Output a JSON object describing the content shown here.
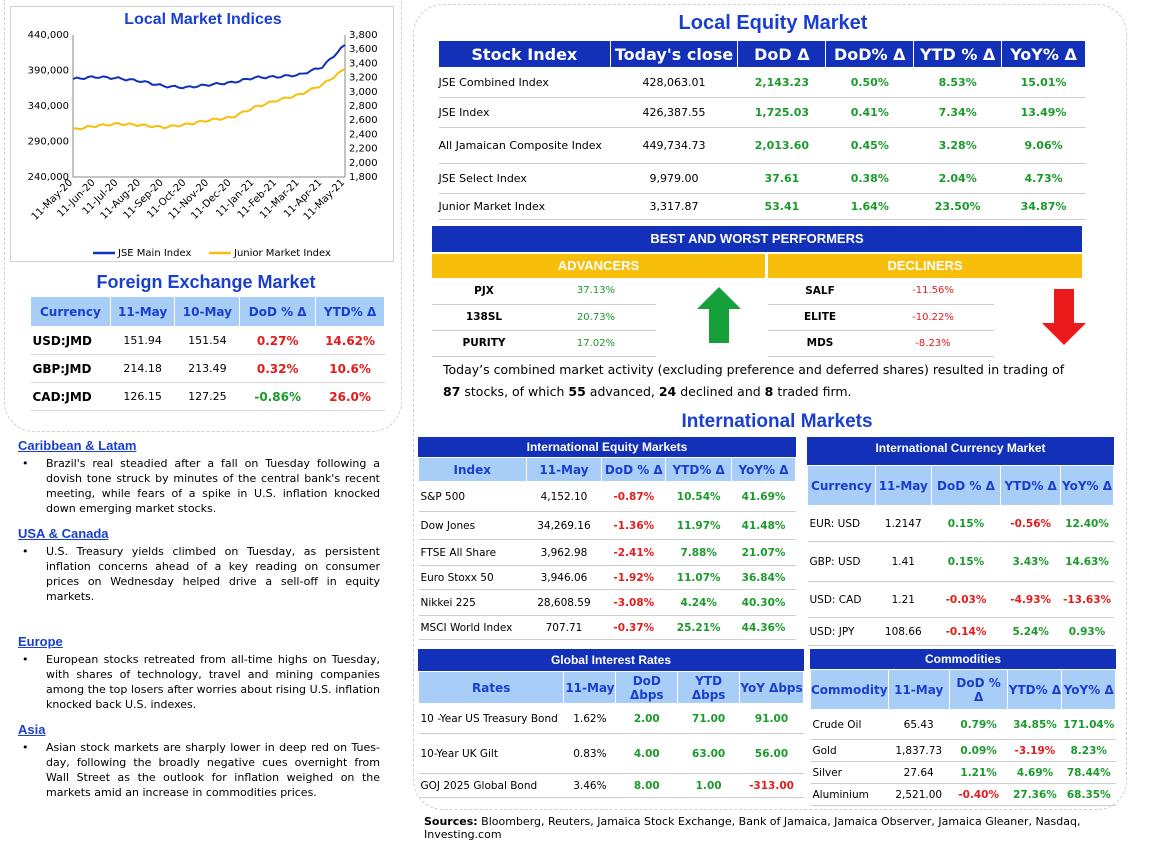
{
  "chart": {
    "title": "Local Market Indices",
    "left_ticks": [
      "440,000",
      "390,000",
      "340,000",
      "290,000",
      "240,000"
    ],
    "right_ticks": [
      "3,800",
      "3,600",
      "3,400",
      "3,200",
      "3,000",
      "2,800",
      "2,600",
      "2,400",
      "2,200",
      "2,000",
      "1,800"
    ],
    "x_ticks": [
      "11-May-20",
      "11-Jun-20",
      "11-Jul-20",
      "11-Aug-20",
      "11-Sep-20",
      "11-Oct-20",
      "11-Nov-20",
      "11-Dec-20",
      "11-Jan-21",
      "11-Feb-21",
      "11-Mar-21",
      "11-Apr-21",
      "11-May-21"
    ],
    "legend": [
      "JSE Main Index",
      "Junior Market Index"
    ]
  },
  "chart_data": {
    "type": "line",
    "title": "Local Market Indices",
    "x": [
      "11-May-20",
      "11-Jun-20",
      "11-Jul-20",
      "11-Aug-20",
      "11-Sep-20",
      "11-Oct-20",
      "11-Nov-20",
      "11-Dec-20",
      "11-Jan-21",
      "11-Feb-21",
      "11-Mar-21",
      "11-Apr-21",
      "11-May-21"
    ],
    "series": [
      {
        "name": "JSE Main Index",
        "axis": "left",
        "color": "#1230b8",
        "values": [
          378000,
          381000,
          379000,
          375000,
          368000,
          366000,
          370000,
          373000,
          380000,
          381000,
          384000,
          395000,
          426000
        ]
      },
      {
        "name": "Junior Market Index",
        "axis": "right",
        "color": "#f8bf0a",
        "values": [
          2470,
          2520,
          2550,
          2530,
          2500,
          2540,
          2600,
          2640,
          2780,
          2880,
          2960,
          3100,
          3320
        ]
      }
    ],
    "ylim_left": [
      240000,
      440000
    ],
    "ylim_right": [
      1800,
      3800
    ],
    "grid": false,
    "legend_position": "bottom"
  },
  "fx": {
    "title": "Foreign Exchange Market",
    "headers": [
      "Currency",
      "11-May",
      "10-May",
      "DoD % Δ",
      "YTD% Δ"
    ],
    "rows": [
      {
        "cur": "USD:JMD",
        "a": "151.94",
        "b": "151.54",
        "dod": "0.27%",
        "ytd": "14.62%",
        "dod_s": "neg",
        "ytd_s": "neg"
      },
      {
        "cur": "GBP:JMD",
        "a": "214.18",
        "b": "213.49",
        "dod": "0.32%",
        "ytd": "10.6%",
        "dod_s": "neg",
        "ytd_s": "neg"
      },
      {
        "cur": "CAD:JMD",
        "a": "126.15",
        "b": "127.25",
        "dod": "-0.86%",
        "ytd": "26.0%",
        "dod_s": "pos",
        "ytd_s": "neg"
      }
    ]
  },
  "news": [
    {
      "heading": "Caribbean & Latam",
      "text": "Brazil's real steadied after a fall on Tuesday following a dovish tone struck by minutes of the central bank's recent meeting, while fears of a spike in U.S. inflation knocked down emerging market stocks."
    },
    {
      "heading": "USA & Canada",
      "text": "U.S. Treasury yields climbed on Tuesday, as persistent inflation concerns ahead of a key reading on consumer prices on Wednesday helped drive a sell-off in equity markets."
    },
    {
      "heading": "Europe",
      "text": "European stocks retreated from all-time highs on Tuesday, with shares of technology, travel and mining companies among the top losers after worries about rising U.S. inflation knocked back U.S. indexes."
    },
    {
      "heading": "Asia",
      "text": "Asian stock markets are sharply lower in deep red on Tues-day, following the broadly negative cues overnight from Wall Street as the outlook for inflation weighed on the markets amid an increase in commodities prices."
    }
  ],
  "equity": {
    "title": "Local Equity Market",
    "headers": [
      "Stock Index",
      "Today's close",
      "DoD  Δ",
      "DoD% Δ",
      "YTD % Δ",
      "YoY% Δ"
    ],
    "rows": [
      {
        "name": "JSE Combined Index",
        "close": "428,063.01",
        "dod": "2,143.23",
        "dodp": "0.50%",
        "ytd": "8.53%",
        "yoy": "15.01%"
      },
      {
        "name": "JSE Index",
        "close": "426,387.55",
        "dod": "1,725.03",
        "dodp": "0.41%",
        "ytd": "7.34%",
        "yoy": "13.49%"
      },
      {
        "name": "All Jamaican Composite Index",
        "close": "449,734.73",
        "dod": "2,013.60",
        "dodp": "0.45%",
        "ytd": "3.28%",
        "yoy": "9.06%"
      },
      {
        "name": "JSE Select Index",
        "close": "9,979.00",
        "dod": "37.61",
        "dodp": "0.38%",
        "ytd": "2.04%",
        "yoy": "4.73%"
      },
      {
        "name": "Junior Market Index",
        "close": "3,317.87",
        "dod": "53.41",
        "dodp": "1.64%",
        "ytd": "23.50%",
        "yoy": "34.87%"
      }
    ]
  },
  "performers": {
    "title": "BEST AND WORST PERFORMERS",
    "adv_label": "ADVANCERS",
    "dec_label": "DECLINERS",
    "advancers": [
      [
        "PJX",
        "37.13%"
      ],
      [
        "138SL",
        "20.73%"
      ],
      [
        "PURITY",
        "17.02%"
      ]
    ],
    "decliners": [
      [
        "SALF",
        "-11.56%"
      ],
      [
        "ELITE",
        "-10.22%"
      ],
      [
        "MDS",
        "-8.23%"
      ]
    ]
  },
  "summary": {
    "t1": "Today’s combined market activity (excluding preference and deferred shares) resulted in trading of ",
    "n1": "87",
    "t2": " stocks, of which ",
    "n2": "55",
    "t3": " advanced, ",
    "n3": "24",
    "t4": " declined and ",
    "n4": "8",
    "t5": " traded firm."
  },
  "intl_title": "International Markets",
  "intl_equity": {
    "title": "International Equity Markets",
    "headers": [
      "Index",
      "11-May",
      "DoD % Δ",
      "YTD% Δ",
      "YoY% Δ"
    ],
    "rows": [
      {
        "n": "S&P 500",
        "v": "4,152.10",
        "dod": "-0.87%",
        "ytd": "10.54%",
        "yoy": "41.69%"
      },
      {
        "n": "Dow Jones",
        "v": "34,269.16",
        "dod": "-1.36%",
        "ytd": "11.97%",
        "yoy": "41.48%"
      },
      {
        "n": "FTSE All Share",
        "v": "3,962.98",
        "dod": "-2.41%",
        "ytd": "7.88%",
        "yoy": "21.07%"
      },
      {
        "n": "Euro Stoxx 50",
        "v": "3,946.06",
        "dod": "-1.92%",
        "ytd": "11.07%",
        "yoy": "36.84%"
      },
      {
        "n": "Nikkei 225",
        "v": "28,608.59",
        "dod": "-3.08%",
        "ytd": "4.24%",
        "yoy": "40.30%"
      },
      {
        "n": "MSCI World Index",
        "v": "707.71",
        "dod": "-0.37%",
        "ytd": "25.21%",
        "yoy": "44.36%"
      }
    ]
  },
  "intl_fx": {
    "title": "International Currency Market",
    "headers": [
      "Currency",
      "11-May",
      "DoD % Δ",
      "YTD% Δ",
      "YoY% Δ"
    ],
    "rows": [
      {
        "n": "EUR: USD",
        "v": "1.2147",
        "dod": "0.15%",
        "ytd": "-0.56%",
        "yoy": "12.40%",
        "ytd_s": "neg"
      },
      {
        "n": "GBP: USD",
        "v": "1.41",
        "dod": "0.15%",
        "ytd": "3.43%",
        "yoy": "14.63%",
        "ytd_s": "pos"
      },
      {
        "n": "USD: CAD",
        "v": "1.21",
        "dod": "-0.03%",
        "ytd": "-4.93%",
        "yoy": "-13.63%",
        "ytd_s": "neg"
      },
      {
        "n": "USD: JPY",
        "v": "108.66",
        "dod": "-0.14%",
        "ytd": "5.24%",
        "yoy": "0.93%",
        "ytd_s": "pos"
      }
    ]
  },
  "rates": {
    "title": "Global Interest Rates",
    "headers": [
      "Rates",
      "11-May",
      "DoD Δbps",
      "YTD Δbps",
      "YoY Δbps"
    ],
    "rows": [
      {
        "n": "10 -Year US Treasury Bond",
        "v": "1.62%",
        "dod": "2.00",
        "ytd": "71.00",
        "yoy": "91.00",
        "yoy_s": "pos"
      },
      {
        "n": "10-Year UK Gilt",
        "v": "0.83%",
        "dod": "4.00",
        "ytd": "63.00",
        "yoy": "56.00",
        "yoy_s": "pos"
      },
      {
        "n": "GOJ 2025 Global Bond",
        "v": "3.46%",
        "dod": "8.00",
        "ytd": "1.00",
        "yoy": "-313.00",
        "yoy_s": "neg"
      }
    ]
  },
  "commodities": {
    "title": "Commodities",
    "headers": [
      "Commodity",
      "11-May",
      "DoD % Δ",
      "YTD% Δ",
      "YoY% Δ"
    ],
    "rows": [
      {
        "n": "Crude Oil",
        "v": "65.43",
        "dod": "0.79%",
        "ytd": "34.85%",
        "yoy": "171.04%",
        "dod_s": "pos",
        "ytd_s": "pos"
      },
      {
        "n": "Gold",
        "v": "1,837.73",
        "dod": "0.09%",
        "ytd": "-3.19%",
        "yoy": "8.23%",
        "dod_s": "pos",
        "ytd_s": "neg"
      },
      {
        "n": "Silver",
        "v": "27.64",
        "dod": "1.21%",
        "ytd": "4.69%",
        "yoy": "78.44%",
        "dod_s": "pos",
        "ytd_s": "pos"
      },
      {
        "n": "Aluminium",
        "v": "2,521.00",
        "dod": "-0.40%",
        "ytd": "27.36%",
        "yoy": "68.35%",
        "dod_s": "neg",
        "ytd_s": "pos"
      }
    ]
  },
  "sources": {
    "label": "Sources:",
    "text": " Bloomberg, Reuters, Jamaica Stock Exchange, Bank of Jamaica, Jamaica Observer, Jamaica Gleaner, Nasdaq, Investing.com"
  },
  "colors": {
    "navy": "#1230b8",
    "light": "#a8cdf7",
    "gold": "#f8bf0a",
    "green": "#1a9a2b",
    "red": "#e31b1b"
  }
}
